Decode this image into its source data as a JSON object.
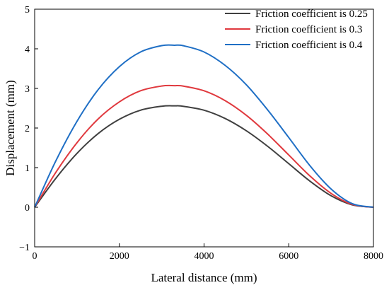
{
  "chart_data": {
    "type": "line",
    "title": "",
    "xlabel": "Lateral distance (mm)",
    "ylabel": "Displacement (mm)",
    "xlim": [
      0,
      8000
    ],
    "ylim": [
      -1,
      5
    ],
    "xticks": [
      0,
      2000,
      4000,
      6000,
      8000
    ],
    "yticks": [
      -1,
      0,
      1,
      2,
      3,
      4,
      5
    ],
    "x_tick_labels": [
      "0",
      "2000",
      "4000",
      "6000",
      "8000"
    ],
    "y_tick_labels": [
      "−1",
      "0",
      "1",
      "2",
      "3",
      "4",
      "5"
    ],
    "grid": false,
    "legend_position": "top-right",
    "series": [
      {
        "name": "Friction coefficient is 0.25",
        "color": "#404040",
        "x": [
          0,
          500,
          1000,
          1500,
          2000,
          2500,
          3000,
          3300,
          3500,
          4000,
          4500,
          5000,
          5500,
          6000,
          6500,
          7000,
          7500,
          8000
        ],
        "y": [
          0,
          0.73,
          1.36,
          1.86,
          2.22,
          2.45,
          2.55,
          2.56,
          2.55,
          2.45,
          2.24,
          1.93,
          1.54,
          1.1,
          0.66,
          0.29,
          0.06,
          0
        ]
      },
      {
        "name": "Friction coefficient is 0.3",
        "color": "#e0393e",
        "x": [
          0,
          500,
          1000,
          1500,
          2000,
          2500,
          3000,
          3300,
          3500,
          4000,
          4500,
          5000,
          5500,
          6000,
          6500,
          7000,
          7500,
          8000
        ],
        "y": [
          0,
          0.88,
          1.63,
          2.23,
          2.66,
          2.94,
          3.06,
          3.07,
          3.06,
          2.94,
          2.69,
          2.32,
          1.85,
          1.32,
          0.79,
          0.35,
          0.07,
          0
        ]
      },
      {
        "name": "Friction coefficient is 0.4",
        "color": "#1f6fc5",
        "x": [
          0,
          500,
          1000,
          1500,
          2000,
          2500,
          3000,
          3300,
          3500,
          4000,
          4500,
          5000,
          5500,
          6000,
          6500,
          7000,
          7500,
          8000
        ],
        "y": [
          0,
          1.17,
          2.17,
          2.97,
          3.55,
          3.92,
          4.08,
          4.09,
          4.08,
          3.92,
          3.58,
          3.09,
          2.46,
          1.76,
          1.05,
          0.46,
          0.09,
          0
        ]
      }
    ]
  }
}
